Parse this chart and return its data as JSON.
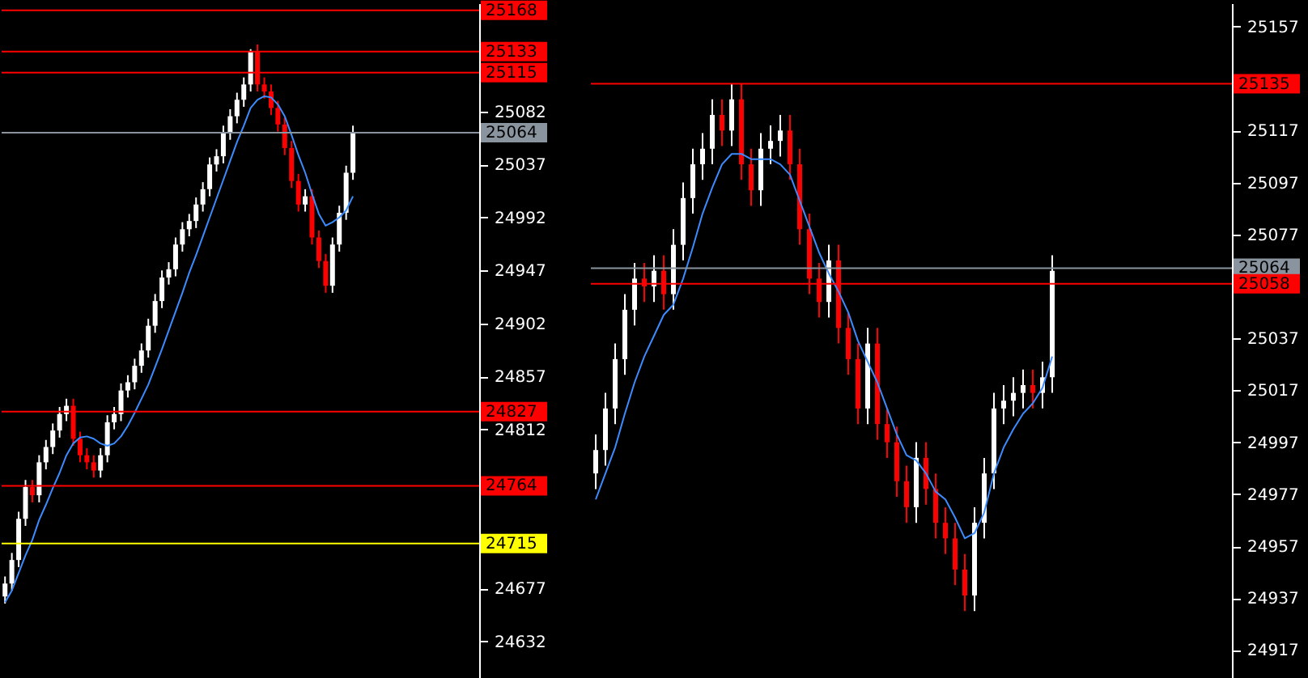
{
  "chart_data": [
    {
      "type": "candlestick",
      "tick_labels": "y",
      "colors": [
        "#ffffff",
        "#ffffff",
        "#ffffff",
        "#ffffff",
        "#ff0000",
        "#ffffff",
        "#ffffff",
        "#ffffff",
        "#ffffff",
        "#ffffff",
        "#ff0000",
        "#ff0000",
        "#ff0000",
        "#ff0000",
        "#ffffff",
        "#ffffff",
        "#ffffff",
        "#ffffff",
        "#ffffff",
        "#ffffff",
        "#ffffff",
        "#ffffff",
        "#ffffff",
        "#ffffff",
        "#ffffff",
        "#ffffff",
        "#ffffff",
        "#ffffff",
        "#ffffff",
        "#ffffff",
        "#ffffff",
        "#ffffff",
        "#ffffff",
        "#ffffff",
        "#ffffff",
        "#ffffff",
        "#ffffff",
        "#ff0000",
        "#ff0000",
        "#ff0000",
        "#ff0000",
        "#ff0000",
        "#ff0000",
        "#ff0000",
        "#ffffff",
        "#ff0000",
        "#ff0000",
        "#ff0000",
        "#ffffff",
        "#ffffff",
        "#ffffff",
        "#ffffff",
        null,
        null,
        null,
        null,
        null,
        null,
        null,
        null,
        null,
        null,
        null,
        null,
        null,
        null,
        null,
        null,
        null,
        null
      ],
      "categories": [
        null,
        null,
        null,
        null,
        null,
        null,
        null,
        null,
        null,
        null,
        null,
        null,
        null,
        null,
        null,
        null,
        null,
        null,
        null,
        null,
        null,
        null,
        null,
        null,
        null,
        null,
        null,
        null,
        null,
        null,
        null,
        null,
        null,
        null,
        null,
        null,
        null,
        null,
        null,
        null,
        null,
        null,
        null,
        null,
        null,
        null,
        null,
        null,
        null,
        null,
        null,
        null,
        null,
        null,
        null,
        null,
        null,
        null,
        null,
        null,
        null,
        null,
        null,
        null,
        null,
        null,
        null,
        null,
        null,
        null
      ],
      "ohlc": [
        [
          24670,
          24687,
          24664,
          24681
        ],
        [
          24681,
          24707,
          24675,
          24701
        ],
        [
          24701,
          24742,
          24695,
          24736
        ],
        [
          24736,
          24769,
          24730,
          24763
        ],
        [
          24763,
          24769,
          24750,
          24756
        ],
        [
          24756,
          24790,
          24750,
          24784
        ],
        [
          24784,
          24803,
          24778,
          24797
        ],
        [
          24797,
          24817,
          24791,
          24811
        ],
        [
          24811,
          24831,
          24805,
          24825
        ],
        [
          24825,
          24838,
          24819,
          24832
        ],
        [
          24832,
          24838,
          24798,
          24804
        ],
        [
          24804,
          24810,
          24784,
          24790
        ],
        [
          24790,
          24796,
          24778,
          24784
        ],
        [
          24784,
          24790,
          24771,
          24777
        ],
        [
          24777,
          24796,
          24771,
          24790
        ],
        [
          24790,
          24824,
          24784,
          24818
        ],
        [
          24818,
          24831,
          24812,
          24825
        ],
        [
          24825,
          24851,
          24819,
          24845
        ],
        [
          24845,
          24858,
          24839,
          24852
        ],
        [
          24852,
          24872,
          24846,
          24866
        ],
        [
          24866,
          24885,
          24860,
          24879
        ],
        [
          24879,
          24906,
          24873,
          24900
        ],
        [
          24900,
          24927,
          24894,
          24921
        ],
        [
          24921,
          24947,
          24915,
          24941
        ],
        [
          24941,
          24954,
          24935,
          24948
        ],
        [
          24948,
          24975,
          24942,
          24969
        ],
        [
          24969,
          24988,
          24963,
          24982
        ],
        [
          24982,
          24995,
          24976,
          24989
        ],
        [
          24989,
          25009,
          24983,
          25003
        ],
        [
          25003,
          25022,
          24997,
          25016
        ],
        [
          25016,
          25043,
          25010,
          25037
        ],
        [
          25037,
          25050,
          25031,
          25044
        ],
        [
          25044,
          25070,
          25038,
          25064
        ],
        [
          25064,
          25084,
          25058,
          25078
        ],
        [
          25078,
          25098,
          25072,
          25092
        ],
        [
          25092,
          25111,
          25086,
          25105
        ],
        [
          25105,
          25135,
          25099,
          25133
        ],
        [
          25133,
          25139,
          25099,
          25105
        ],
        [
          25105,
          25111,
          25093,
          25099
        ],
        [
          25099,
          25105,
          25079,
          25085
        ],
        [
          25085,
          25091,
          25065,
          25071
        ],
        [
          25071,
          25077,
          25045,
          25051
        ],
        [
          25051,
          25057,
          25017,
          25023
        ],
        [
          25023,
          25029,
          24997,
          25003
        ],
        [
          25003,
          25016,
          24997,
          25010
        ],
        [
          25010,
          25016,
          24969,
          24975
        ],
        [
          24975,
          24981,
          24949,
          24955
        ],
        [
          24955,
          24961,
          24928,
          24934
        ],
        [
          24934,
          24975,
          24928,
          24969
        ],
        [
          24969,
          25002,
          24963,
          24996
        ],
        [
          24996,
          25036,
          24990,
          25030
        ],
        [
          25030,
          25070,
          25024,
          25064
        ],
        null,
        null,
        null,
        null,
        null,
        null,
        null,
        null,
        null,
        null,
        null,
        null,
        null,
        null,
        null,
        null,
        null,
        null
      ],
      "series": [
        {
          "type": "line",
          "color": "#3c8cff",
          "values": [
            24665,
            24675,
            24690,
            24705,
            24718,
            24735,
            24748,
            24762,
            24775,
            24790,
            24800,
            24805,
            24806,
            24804,
            24800,
            24798,
            24800,
            24806,
            24815,
            24826,
            24838,
            24850,
            24865,
            24880,
            24896,
            24912,
            24928,
            24945,
            24960,
            24976,
            24992,
            25008,
            25024,
            25040,
            25056,
            25070,
            25085,
            25092,
            25095,
            25094,
            25088,
            25078,
            25062,
            25045,
            25030,
            25012,
            24995,
            24985,
            24988,
            24992,
            24998,
            25010,
            null,
            null,
            null,
            null,
            null,
            null,
            null,
            null,
            null,
            null,
            null,
            null,
            null,
            null,
            null,
            null,
            null,
            null
          ]
        }
      ],
      "ylim": [
        24598,
        25174
      ],
      "yticks": [
        24632,
        24677,
        24812,
        24857,
        24902,
        24947,
        24992,
        25037,
        25082
      ],
      "ref_lines": [
        {
          "axis": "y",
          "value": 25168,
          "label": "25168",
          "color": "#ff0000"
        },
        {
          "axis": "y",
          "value": 25133,
          "label": "25133",
          "color": "#ff0000"
        },
        {
          "axis": "y",
          "value": 25115,
          "label": "25115",
          "color": "#ff0000"
        },
        {
          "axis": "y",
          "value": 25064,
          "label": "25064",
          "color": "#8a949e"
        },
        {
          "axis": "y",
          "value": 24827,
          "label": "24827",
          "color": "#ff0000"
        },
        {
          "axis": "y",
          "value": 24764,
          "label": "24764",
          "color": "#ff0000"
        },
        {
          "axis": "y",
          "value": 24715,
          "label": "24715",
          "color": "#ffff00"
        }
      ]
    },
    {
      "type": "candlestick",
      "tick_labels": "y",
      "colors": [
        "#ffffff",
        "#ffffff",
        "#ffffff",
        "#ffffff",
        "#ffffff",
        "#ff0000",
        "#ffffff",
        "#ff0000",
        "#ffffff",
        "#ffffff",
        "#ffffff",
        "#ffffff",
        "#ffffff",
        "#ff0000",
        "#ffffff",
        "#ff0000",
        "#ff0000",
        "#ffffff",
        "#ffffff",
        "#ffffff",
        "#ff0000",
        "#ff0000",
        "#ff0000",
        "#ff0000",
        "#ffffff",
        "#ff0000",
        "#ff0000",
        "#ff0000",
        "#ffffff",
        "#ff0000",
        "#ff0000",
        "#ff0000",
        "#ff0000",
        "#ffffff",
        "#ff0000",
        "#ff0000",
        "#ff0000",
        "#ff0000",
        "#ff0000",
        "#ffffff",
        "#ffffff",
        "#ffffff",
        "#ffffff",
        "#ffffff",
        "#ffffff",
        "#ff0000",
        "#ffffff",
        "#ffffff",
        null,
        null,
        null,
        null,
        null,
        null,
        null,
        null,
        null,
        null,
        null,
        null,
        null,
        null,
        null,
        null,
        null,
        null
      ],
      "categories": [
        null,
        null,
        null,
        null,
        null,
        null,
        null,
        null,
        null,
        null,
        null,
        null,
        null,
        null,
        null,
        null,
        null,
        null,
        null,
        null,
        null,
        null,
        null,
        null,
        null,
        null,
        null,
        null,
        null,
        null,
        null,
        null,
        null,
        null,
        null,
        null,
        null,
        null,
        null,
        null,
        null,
        null,
        null,
        null,
        null,
        null,
        null,
        null,
        null,
        null,
        null,
        null,
        null,
        null,
        null,
        null,
        null,
        null,
        null,
        null,
        null,
        null,
        null,
        null,
        null,
        null
      ],
      "ohlc": [
        [
          24985,
          25000,
          24979,
          24994
        ],
        [
          24994,
          25016,
          24988,
          25010
        ],
        [
          25010,
          25035,
          25004,
          25029
        ],
        [
          25029,
          25054,
          25023,
          25048
        ],
        [
          25048,
          25066,
          25042,
          25060
        ],
        [
          25060,
          25066,
          25051,
          25057
        ],
        [
          25057,
          25069,
          25051,
          25063
        ],
        [
          25063,
          25069,
          25048,
          25054
        ],
        [
          25054,
          25079,
          25048,
          25073
        ],
        [
          25073,
          25097,
          25067,
          25091
        ],
        [
          25091,
          25110,
          25085,
          25104
        ],
        [
          25104,
          25116,
          25098,
          25110
        ],
        [
          25110,
          25129,
          25104,
          25123
        ],
        [
          25123,
          25129,
          25111,
          25117
        ],
        [
          25117,
          25135,
          25111,
          25129
        ],
        [
          25129,
          25135,
          25098,
          25104
        ],
        [
          25104,
          25110,
          25088,
          25094
        ],
        [
          25094,
          25116,
          25088,
          25110
        ],
        [
          25110,
          25119,
          25104,
          25113
        ],
        [
          25113,
          25123,
          25107,
          25117
        ],
        [
          25117,
          25123,
          25098,
          25104
        ],
        [
          25104,
          25110,
          25073,
          25079
        ],
        [
          25079,
          25085,
          25054,
          25060
        ],
        [
          25060,
          25066,
          25045,
          25051
        ],
        [
          25051,
          25073,
          25045,
          25067
        ],
        [
          25067,
          25073,
          25035,
          25041
        ],
        [
          25041,
          25047,
          25023,
          25029
        ],
        [
          25029,
          25035,
          25004,
          25010
        ],
        [
          25010,
          25041,
          25004,
          25035
        ],
        [
          25035,
          25041,
          24998,
          25004
        ],
        [
          25004,
          25010,
          24991,
          24997
        ],
        [
          24997,
          25003,
          24976,
          24982
        ],
        [
          24982,
          24988,
          24966,
          24972
        ],
        [
          24972,
          24997,
          24966,
          24991
        ],
        [
          24991,
          24997,
          24973,
          24979
        ],
        [
          24979,
          24985,
          24960,
          24966
        ],
        [
          24966,
          24972,
          24954,
          24960
        ],
        [
          24960,
          24966,
          24942,
          24948
        ],
        [
          24948,
          24954,
          24932,
          24938
        ],
        [
          24938,
          24972,
          24932,
          24966
        ],
        [
          24966,
          24991,
          24960,
          24985
        ],
        [
          24985,
          25016,
          24979,
          25010
        ],
        [
          25010,
          25019,
          25004,
          25013
        ],
        [
          25013,
          25022,
          25007,
          25016
        ],
        [
          25016,
          25025,
          25010,
          25019
        ],
        [
          25019,
          25025,
          25010,
          25016
        ],
        [
          25016,
          25028,
          25010,
          25022
        ],
        [
          25022,
          25069,
          25016,
          25063
        ],
        null,
        null,
        null,
        null,
        null,
        null,
        null,
        null,
        null,
        null,
        null,
        null,
        null,
        null,
        null,
        null,
        null,
        null
      ],
      "series": [
        {
          "type": "line",
          "color": "#3c8cff",
          "values": [
            24975,
            24985,
            24995,
            25008,
            25020,
            25030,
            25038,
            25046,
            25050,
            25060,
            25072,
            25085,
            25095,
            25104,
            25108,
            25108,
            25106,
            25106,
            25106,
            25104,
            25100,
            25090,
            25080,
            25070,
            25062,
            25055,
            25047,
            25036,
            25028,
            25020,
            25010,
            25000,
            24992,
            24990,
            24985,
            24978,
            24975,
            24968,
            24960,
            24962,
            24970,
            24985,
            24995,
            25002,
            25008,
            25012,
            25018,
            25030,
            null,
            null,
            null,
            null,
            null,
            null,
            null,
            null,
            null,
            null,
            null,
            null,
            null,
            null,
            null,
            null,
            null,
            null
          ]
        }
      ],
      "ylim": [
        24905,
        25166
      ],
      "yticks": [
        24917,
        24937,
        24957,
        24977,
        24997,
        25017,
        25037,
        25077,
        25097,
        25117,
        25157
      ],
      "ref_lines": [
        {
          "axis": "y",
          "value": 25135,
          "label": "25135",
          "color": "#ff0000"
        },
        {
          "axis": "y",
          "value": 25064,
          "label": "25064",
          "color": "#8a949e"
        },
        {
          "axis": "y",
          "value": 25058,
          "label": "25058",
          "color": "#ff0000"
        }
      ]
    }
  ]
}
